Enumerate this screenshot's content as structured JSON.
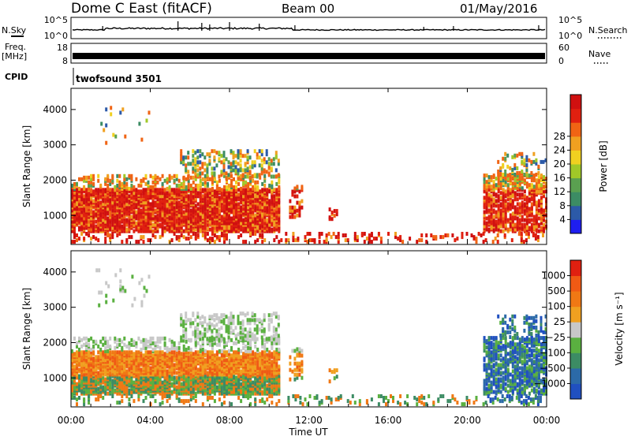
{
  "header": {
    "title": "Dome C East (fitACF)",
    "beam": "Beam 00",
    "date": "01/May/2016"
  },
  "top_panels": {
    "nsky_label": "N.Sky",
    "nsky_ticks": [
      "10^5",
      "10^0"
    ],
    "nsearch_label": "N.Search",
    "nsearch_ticks": [
      "10^5",
      "10^0"
    ],
    "freq_label": "Freq.",
    "freq_unit": "[MHz]",
    "freq_ticks": [
      "18",
      "8"
    ],
    "nave_label": "Nave",
    "nave_ticks": [
      "60",
      "0"
    ],
    "cpid_label": "CPID",
    "cpid_text": "twofsound 3501"
  },
  "chart_data": [
    {
      "type": "heatmap",
      "name": "power",
      "ylabel": "Slant Range [km]",
      "yticks": [
        1000,
        2000,
        3000,
        4000
      ],
      "ylim": [
        180,
        4600
      ],
      "xlim_hours": [
        0,
        24
      ],
      "colorbar_label": "Power [dB]",
      "colorbar_ticks": [
        "4",
        "8",
        "12",
        "16",
        "20",
        "24",
        "28"
      ],
      "colorbar_colors": [
        "#1e1ef0",
        "#2c5aa8",
        "#3c8c64",
        "#5aa050",
        "#a0c828",
        "#f0d020",
        "#f0a020",
        "#f06414",
        "#e02010",
        "#d01010"
      ]
    },
    {
      "type": "heatmap",
      "name": "velocity",
      "ylabel": "Slant Range [km]",
      "yticks": [
        1000,
        2000,
        3000,
        4000
      ],
      "ylim": [
        180,
        4600
      ],
      "xlim_hours": [
        0,
        24
      ],
      "xlabel": "Time UT",
      "xticks": [
        "00:00",
        "04:00",
        "08:00",
        "12:00",
        "16:00",
        "20:00",
        "00:00"
      ],
      "colorbar_label": "Velocity [m s⁻¹]",
      "colorbar_ticks": [
        "1000",
        "500",
        "100",
        "25",
        "−25",
        "−100",
        "−500",
        "−1000"
      ],
      "colorbar_colors": [
        "#2050c0",
        "#2c6aa8",
        "#3c8c64",
        "#5ab040",
        "#c8c8c8",
        "#f0a020",
        "#f07814",
        "#f05a14",
        "#e02010"
      ]
    }
  ]
}
